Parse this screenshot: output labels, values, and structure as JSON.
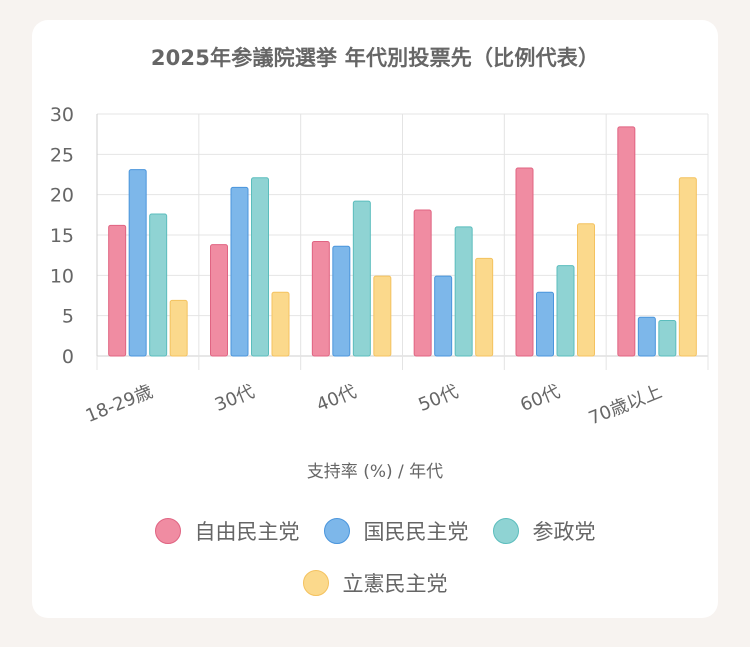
{
  "chart_data": {
    "type": "bar",
    "title": "2025年参議院選挙 年代別投票先（比例代表）",
    "xlabel": "支持率 (%) / 年代",
    "ylabel": "",
    "ylim": [
      0,
      30
    ],
    "yticks": [
      "0",
      "5",
      "10",
      "15",
      "20",
      "25",
      "30"
    ],
    "grid": true,
    "legend_position": "bottom",
    "categories": [
      "18-29歳",
      "30代",
      "40代",
      "50代",
      "60代",
      "70歳以上"
    ],
    "series": [
      {
        "name": "自由民主党",
        "color": "#f08ca2",
        "border": "#e06482",
        "values": [
          16.2,
          13.8,
          14.2,
          18.1,
          23.3,
          28.4
        ]
      },
      {
        "name": "国民民主党",
        "color": "#7db7ea",
        "border": "#4a95dc",
        "values": [
          23.1,
          20.9,
          13.6,
          9.9,
          7.9,
          4.8
        ]
      },
      {
        "name": "参政党",
        "color": "#8fd3d3",
        "border": "#5bbdbd",
        "values": [
          17.6,
          22.1,
          19.2,
          16.0,
          11.2,
          4.4
        ]
      },
      {
        "name": "立憲民主党",
        "color": "#fbd98c",
        "border": "#f4c25f",
        "values": [
          6.9,
          7.9,
          9.9,
          12.1,
          16.4,
          22.1
        ]
      }
    ]
  }
}
